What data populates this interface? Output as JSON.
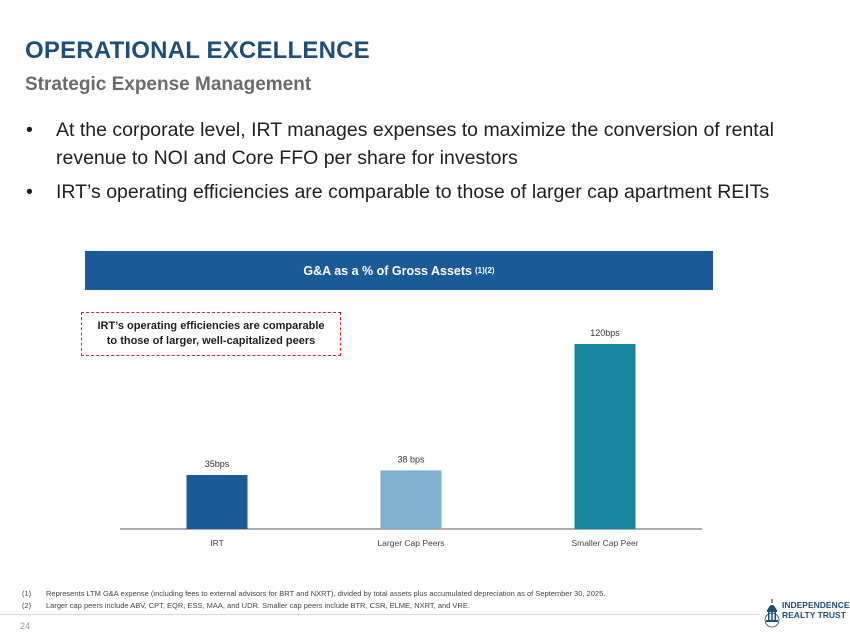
{
  "header": {
    "title": "OPERATIONAL EXCELLENCE",
    "subtitle": "Strategic Expense Management"
  },
  "bullets": [
    "At the corporate level, IRT manages expenses to maximize the conversion of rental revenue to NOI and Core FFO per share for investors",
    "IRT’s operating efficiencies are comparable to those of larger cap apartment REITs"
  ],
  "bullet_symbol": "•",
  "chart_header": {
    "label": "G&A as a % of Gross Assets",
    "superscript": "(1)(2)"
  },
  "callout": {
    "line1": "IRT’s operating efficiencies are comparable",
    "line2": "to those of larger, well-capitalized peers"
  },
  "chart_data": {
    "type": "bar",
    "title": "G&A as a % of Gross Assets (1)(2)",
    "categories": [
      "IRT",
      "Larger Cap Peers",
      "Smaller Cap Peer"
    ],
    "values": [
      35,
      38,
      120
    ],
    "value_labels": [
      "35bps",
      "38 bps",
      "120bps"
    ],
    "units": "bps",
    "colors": [
      "#1a5a96",
      "#7faecf",
      "#16869e"
    ],
    "xlabel": "",
    "ylabel": "",
    "ylim": [
      0,
      120
    ],
    "grid": false
  },
  "footnotes": [
    {
      "num": "(1)",
      "text": "Represents LTM G&A expense (including fees to external advisors  for BRT and NXRT), divided by total assets plus accumulated depreciation as of September 30, 2025."
    },
    {
      "num": "(2)",
      "text": "Larger cap peers include ABV, CPT, EQR, ESS, MAA, and UDR. Smaller cap peers include BTR, CSR, ELME, NXRT, and VRE."
    }
  ],
  "page_number": "24",
  "logo": {
    "line1": "INDEPENDENCE",
    "line2": "REALTY TRUST"
  },
  "colors": {
    "title": "#1f4e79",
    "header_band": "#1a5a96",
    "callout_border": "#d9262e"
  }
}
